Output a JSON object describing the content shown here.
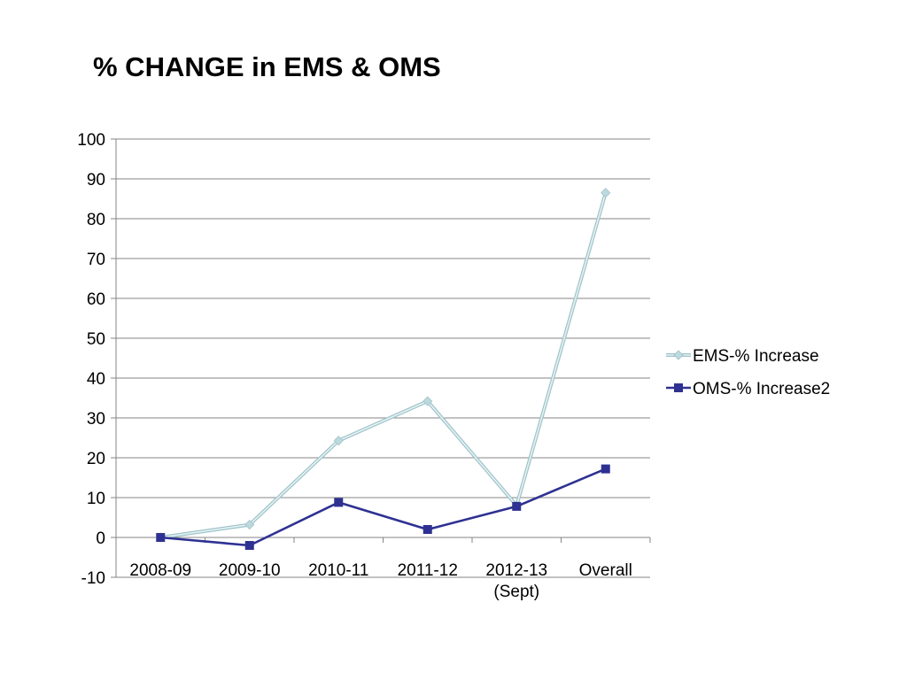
{
  "slide": {
    "title": "% CHANGE in EMS & OMS"
  },
  "chart_data": {
    "type": "line",
    "title": "% CHANGE in EMS & OMS",
    "xlabel": "",
    "ylabel": "",
    "categories": [
      [
        "2008-09"
      ],
      [
        "2009-10"
      ],
      [
        "2010-11"
      ],
      [
        "2011-12"
      ],
      [
        "2012-13",
        "(Sept)"
      ],
      [
        "Overall"
      ]
    ],
    "ylim": [
      -10,
      100
    ],
    "yticks": [
      -10,
      0,
      10,
      20,
      30,
      40,
      50,
      60,
      70,
      80,
      90,
      100
    ],
    "grid": true,
    "legend_position": "right",
    "series": [
      {
        "name": "EMS-% Increase",
        "color": "#bcd9de",
        "marker": "diamond",
        "values": [
          0,
          3.2,
          24.3,
          34.2,
          8.0,
          86.5
        ]
      },
      {
        "name": "OMS-% Increase2",
        "color": "#2e3192",
        "marker": "square",
        "values": [
          0,
          -2.0,
          8.8,
          2.0,
          7.8,
          17.2
        ]
      }
    ]
  }
}
